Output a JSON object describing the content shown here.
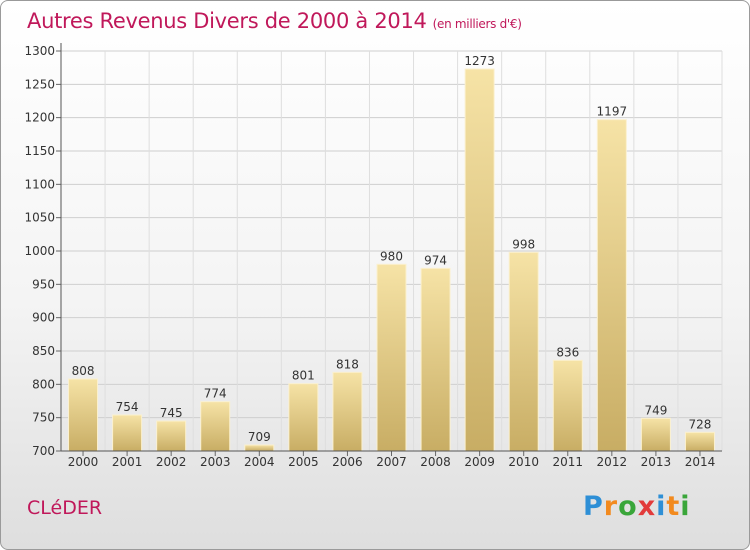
{
  "title": "Autres Revenus Divers de 2000 à 2014",
  "title_unit": "(en milliers d'€)",
  "city": "CLéDER",
  "logo": [
    "P",
    "r",
    "o",
    "x",
    "i",
    "t",
    "i"
  ],
  "logo_colors": [
    "#2e8fd6",
    "#f28a1e",
    "#3aa63a",
    "#e23b3b",
    "#2e8fd6",
    "#f28a1e",
    "#3aa63a"
  ],
  "bar_color_light": "#f6e3a6",
  "bar_color_dark": "#c8ad64",
  "chart_data": {
    "type": "bar",
    "categories": [
      "2000",
      "2001",
      "2002",
      "2003",
      "2004",
      "2005",
      "2006",
      "2007",
      "2008",
      "2009",
      "2010",
      "2011",
      "2012",
      "2013",
      "2014"
    ],
    "values": [
      808,
      754,
      745,
      774,
      709,
      801,
      818,
      980,
      974,
      1273,
      998,
      836,
      1197,
      749,
      728
    ],
    "ylim": [
      700,
      1300
    ],
    "yticks": [
      700,
      750,
      800,
      850,
      900,
      950,
      1000,
      1050,
      1100,
      1150,
      1200,
      1250,
      1300
    ],
    "grid": true,
    "data_labels": true
  }
}
